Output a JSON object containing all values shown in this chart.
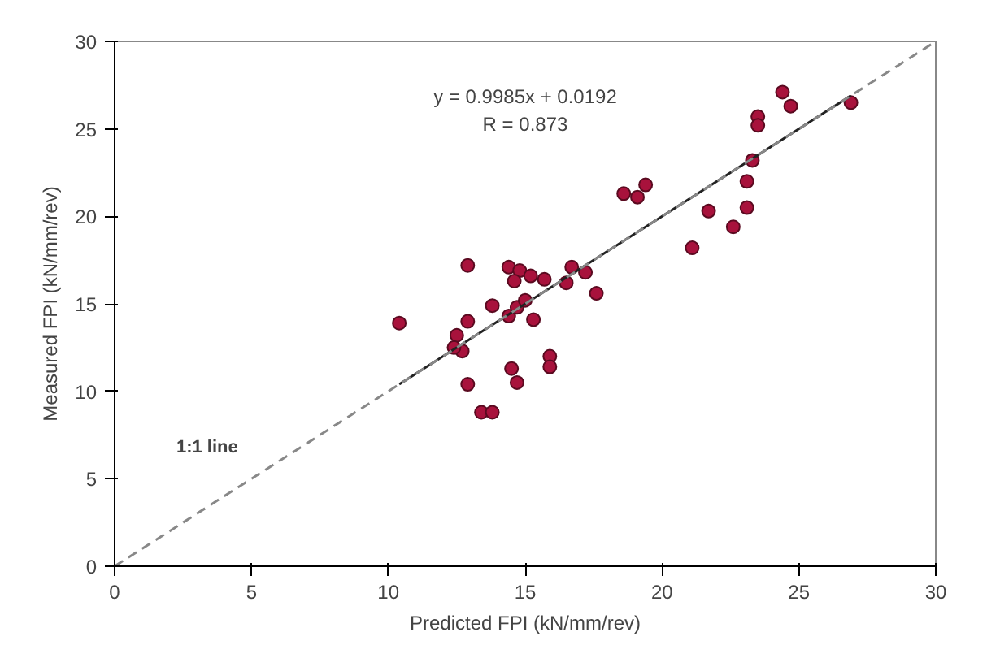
{
  "chart_data": {
    "type": "scatter",
    "xlabel": "Predicted FPI (kN/mm/rev)",
    "ylabel": "Measured FPI (kN/mm/rev)",
    "xlim": [
      0,
      30
    ],
    "ylim": [
      0,
      30
    ],
    "xticks": [
      0,
      5,
      10,
      15,
      20,
      25,
      30
    ],
    "yticks": [
      0,
      5,
      10,
      15,
      20,
      25,
      30
    ],
    "grid": false,
    "marker": "circle",
    "annotations": [
      "y = 0.9985x + 0.0192\nR = 0.873"
    ],
    "series": [
      {
        "color": "#a8123c",
        "x": [
          10.4,
          12.9,
          12.9,
          12.5,
          12.7,
          12.4,
          12.9,
          13.4,
          13.8,
          13.8,
          14.4,
          14.7,
          15.0,
          15.3,
          14.4,
          14.8,
          14.6,
          15.2,
          15.7,
          14.5,
          14.7,
          15.9,
          15.9,
          16.5,
          16.7,
          17.2,
          17.6,
          18.6,
          19.1,
          19.4,
          21.1,
          21.7,
          22.6,
          23.1,
          23.1,
          23.3,
          23.5,
          23.5,
          24.4,
          24.7,
          26.9
        ],
        "values": [
          13.9,
          17.2,
          14.0,
          13.2,
          12.3,
          12.5,
          10.4,
          8.8,
          8.8,
          14.9,
          14.3,
          14.8,
          15.2,
          14.1,
          17.1,
          16.9,
          16.3,
          16.6,
          16.4,
          11.3,
          10.5,
          12.0,
          11.4,
          16.2,
          17.1,
          16.8,
          15.6,
          21.3,
          21.1,
          21.8,
          18.2,
          20.3,
          19.4,
          20.5,
          22.0,
          23.2,
          25.7,
          25.2,
          27.1,
          26.3,
          26.5
        ]
      },
      {
        "type": "line",
        "color": "#222222",
        "line_style": "solid",
        "marker": "none",
        "x": [
          10.4,
          26.9
        ],
        "values": [
          10.4,
          26.9
        ]
      },
      {
        "type": "line",
        "name": "1:1 line",
        "color": "#888888",
        "line_style": "dashed",
        "marker": "none",
        "x": [
          0,
          30
        ],
        "values": [
          0,
          30
        ]
      }
    ]
  }
}
